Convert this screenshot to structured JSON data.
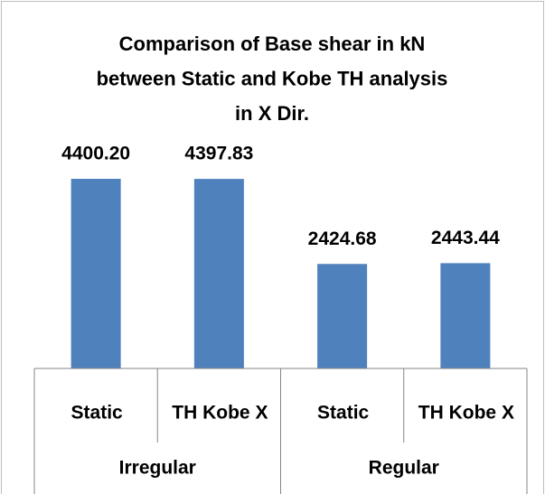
{
  "chart_data": {
    "type": "bar",
    "title": [
      "Comparison of Base shear in kN",
      "between Static and Kobe TH analysis",
      "in X Dir."
    ],
    "categories": [
      "Static",
      "TH Kobe X",
      "Static",
      "TH Kobe X"
    ],
    "groups": [
      "Irregular",
      "Regular"
    ],
    "values": [
      4400.2,
      4397.83,
      2424.68,
      2443.44
    ],
    "value_labels": [
      "4400.20",
      "4397.83",
      "2424.68",
      "2443.44"
    ],
    "color": "#4f81bd"
  }
}
